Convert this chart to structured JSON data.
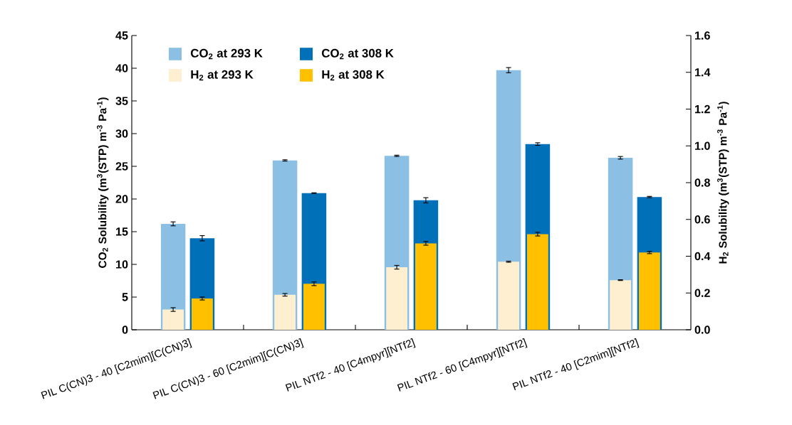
{
  "chart_data": {
    "type": "bar",
    "categories": [
      "PIL C(CN)3 - 40 [C2mim][C(CN)3]",
      "PIL C(CN)3 - 60 [C2mim][C(CN)3]",
      "PIL NTf2 - 40 [C4mpyr][NTf2]",
      "PIL NTf2 - 60 [C4mpyr][NTf2]",
      "PIL NTf2 - 40 [C2mim][NTf2]"
    ],
    "series": [
      {
        "name": "CO$_{2}$ at 293 K",
        "color": "#8bc0e4",
        "values": [
          16.2,
          25.9,
          26.6,
          39.7,
          26.3
        ],
        "errors": [
          0.3,
          0.1,
          0.1,
          0.4,
          0.2
        ]
      },
      {
        "name": "CO$_{2}$ at 308 K",
        "color": "#0070b8",
        "values": [
          14.0,
          20.9,
          19.8,
          28.4,
          20.3
        ],
        "errors": [
          0.4,
          0.05,
          0.4,
          0.2,
          0.1
        ]
      },
      {
        "name": "H$_{2}$ at 293 K",
        "color": "#fdefcf",
        "axis": "y2",
        "values": [
          0.11,
          0.19,
          0.34,
          0.37,
          0.27
        ],
        "errors": [
          0.01,
          0.007,
          0.01,
          0.003,
          0.002
        ]
      },
      {
        "name": "H$_{2}$ at 308 K",
        "color": "#ffc000",
        "axis": "y2",
        "values": [
          0.17,
          0.25,
          0.47,
          0.52,
          0.42
        ],
        "errors": [
          0.008,
          0.01,
          0.01,
          0.01,
          0.006
        ]
      }
    ],
    "ylabel": "CO$_{2}$ Solubility (m$^{3}$(STP) m$^{-3}$ Pa$^{-1}$)",
    "y2label": "H$_{2}$ Solubility (m$^{3}$(STP) m$^{-3}$ Pa$^{-1}$)",
    "ylim": [
      0,
      45
    ],
    "yticks": [
      0,
      5,
      10,
      15,
      20,
      25,
      30,
      35,
      40,
      45
    ],
    "y2lim": [
      0,
      1.6
    ],
    "y2ticks": [
      {
        "value": 0,
        "label": "0.0"
      },
      0.2,
      0.4,
      0.6,
      0.8,
      {
        "value": 1,
        "label": "1.0"
      },
      1.2,
      1.4,
      1.6
    ],
    "legend": "top left"
  }
}
